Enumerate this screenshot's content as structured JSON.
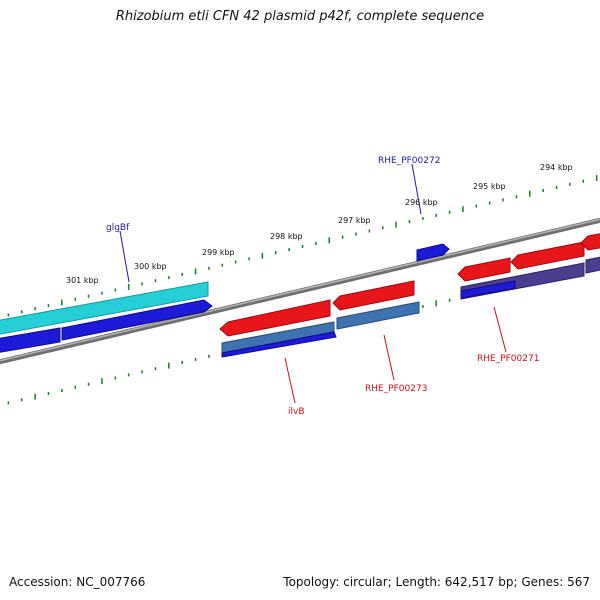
{
  "title": "Rhizobium etli CFN 42 plasmid p42f, complete sequence",
  "footer": {
    "accession": "Accession: NC_007766",
    "stats": "Topology: circular; Length: 642,517 bp; Genes: 567"
  },
  "colors": {
    "backbone": "#8a8a8a",
    "tick": "#1f7a1f",
    "red": "#e8151b",
    "blue": "#1d1ad8",
    "cyan": "#25cfd6",
    "steel": "#3f72b0",
    "slate": "#4a3f8e",
    "label_blue": "#1a1aa8",
    "label_red": "#c4101a"
  },
  "ticks": [
    {
      "label": "301 kbp"
    },
    {
      "label": "300 kbp"
    },
    {
      "label": "299 kbp"
    },
    {
      "label": "298 kbp"
    },
    {
      "label": "297 kbp"
    },
    {
      "label": "296 kbp"
    },
    {
      "label": "295 kbp"
    },
    {
      "label": "294 kbp"
    }
  ],
  "gene_labels": [
    {
      "text": "glgBf",
      "color": "label_blue"
    },
    {
      "text": "RHE_PF00272",
      "color": "label_blue"
    },
    {
      "text": "ilvB",
      "color": "label_red"
    },
    {
      "text": "RHE_PF00273",
      "color": "label_red"
    },
    {
      "text": "RHE_PF00271",
      "color": "label_red"
    }
  ]
}
